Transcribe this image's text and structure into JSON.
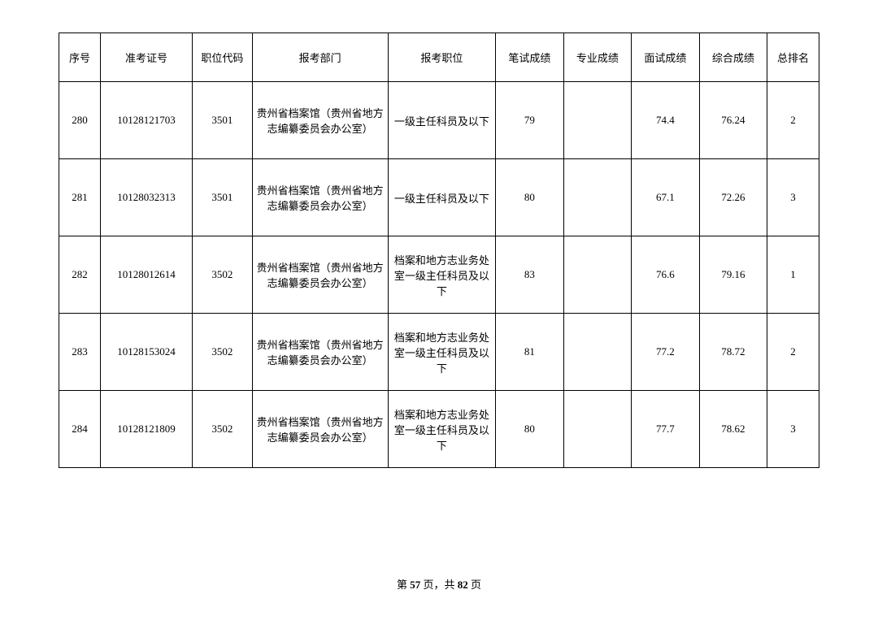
{
  "table": {
    "columns": [
      "序号",
      "准考证号",
      "职位代码",
      "报考部门",
      "报考职位",
      "笔试成绩",
      "专业成绩",
      "面试成绩",
      "综合成绩",
      "总排名"
    ],
    "rows": [
      {
        "seq": "280",
        "exam_id": "10128121703",
        "job_code": "3501",
        "dept": "贵州省档案馆（贵州省地方志编纂委员会办公室）",
        "position": "一级主任科员及以下",
        "written": "79",
        "prof": "",
        "interview": "74.4",
        "total": "76.24",
        "rank": "2"
      },
      {
        "seq": "281",
        "exam_id": "10128032313",
        "job_code": "3501",
        "dept": "贵州省档案馆（贵州省地方志编纂委员会办公室）",
        "position": "一级主任科员及以下",
        "written": "80",
        "prof": "",
        "interview": "67.1",
        "total": "72.26",
        "rank": "3"
      },
      {
        "seq": "282",
        "exam_id": "10128012614",
        "job_code": "3502",
        "dept": "贵州省档案馆（贵州省地方志编纂委员会办公室）",
        "position": "档案和地方志业务处室一级主任科员及以下",
        "written": "83",
        "prof": "",
        "interview": "76.6",
        "total": "79.16",
        "rank": "1"
      },
      {
        "seq": "283",
        "exam_id": "10128153024",
        "job_code": "3502",
        "dept": "贵州省档案馆（贵州省地方志编纂委员会办公室）",
        "position": "档案和地方志业务处室一级主任科员及以下",
        "written": "81",
        "prof": "",
        "interview": "77.2",
        "total": "78.72",
        "rank": "2"
      },
      {
        "seq": "284",
        "exam_id": "10128121809",
        "job_code": "3502",
        "dept": "贵州省档案馆（贵州省地方志编纂委员会办公室）",
        "position": "档案和地方志业务处室一级主任科员及以下",
        "written": "80",
        "prof": "",
        "interview": "77.7",
        "total": "78.62",
        "rank": "3"
      }
    ]
  },
  "pager": {
    "prefix": "第 ",
    "current": "57",
    "middle": " 页，共 ",
    "total": "82",
    "suffix": " 页"
  }
}
